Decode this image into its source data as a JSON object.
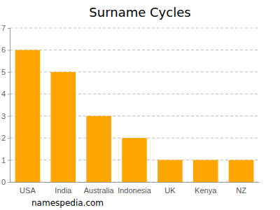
{
  "chart_data": {
    "type": "bar",
    "title": "Surname Cycles",
    "categories": [
      "USA",
      "India",
      "Australia",
      "Indonesia",
      "UK",
      "Kenya",
      "NZ"
    ],
    "values": [
      6,
      5,
      3,
      2,
      1,
      1,
      1
    ],
    "color": "#ffa500",
    "ylim": [
      0,
      7
    ],
    "yticks": [
      0,
      1,
      2,
      3,
      4,
      5,
      6,
      7
    ],
    "grid": true,
    "annotations": [
      "namespedia.com"
    ]
  }
}
